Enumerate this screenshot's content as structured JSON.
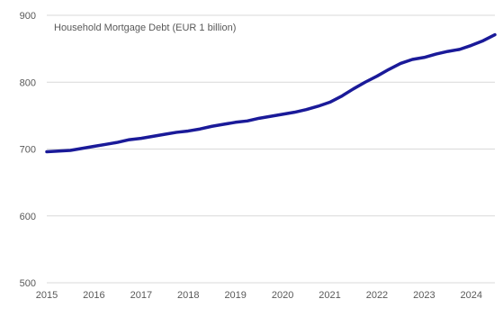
{
  "chart_data": {
    "type": "line",
    "title": "Household Mortgage Debt (EUR 1 billion)",
    "xlabel": "",
    "ylabel": "",
    "xlim": [
      2015.0,
      2024.5
    ],
    "ylim": [
      500,
      900
    ],
    "x_ticks": [
      "2015",
      "2016",
      "2017",
      "2018",
      "2019",
      "2020",
      "2021",
      "2022",
      "2023",
      "2024"
    ],
    "y_ticks": [
      "500",
      "600",
      "700",
      "800",
      "900"
    ],
    "grid": "horizontal",
    "legend": "none",
    "series": [
      {
        "color": "#1a1a99",
        "points": [
          [
            2015.0,
            696
          ],
          [
            2015.25,
            697
          ],
          [
            2015.5,
            698
          ],
          [
            2015.75,
            701
          ],
          [
            2016.0,
            704
          ],
          [
            2016.25,
            707
          ],
          [
            2016.5,
            710
          ],
          [
            2016.75,
            714
          ],
          [
            2017.0,
            716
          ],
          [
            2017.25,
            719
          ],
          [
            2017.5,
            722
          ],
          [
            2017.75,
            725
          ],
          [
            2018.0,
            727
          ],
          [
            2018.25,
            730
          ],
          [
            2018.5,
            734
          ],
          [
            2018.75,
            737
          ],
          [
            2019.0,
            740
          ],
          [
            2019.25,
            742
          ],
          [
            2019.5,
            746
          ],
          [
            2019.75,
            749
          ],
          [
            2020.0,
            752
          ],
          [
            2020.25,
            755
          ],
          [
            2020.5,
            759
          ],
          [
            2020.75,
            764
          ],
          [
            2021.0,
            770
          ],
          [
            2021.25,
            779
          ],
          [
            2021.5,
            790
          ],
          [
            2021.75,
            800
          ],
          [
            2022.0,
            809
          ],
          [
            2022.25,
            819
          ],
          [
            2022.5,
            828
          ],
          [
            2022.75,
            834
          ],
          [
            2023.0,
            837
          ],
          [
            2023.25,
            842
          ],
          [
            2023.5,
            846
          ],
          [
            2023.75,
            849
          ],
          [
            2024.0,
            855
          ],
          [
            2024.25,
            862
          ],
          [
            2024.5,
            871
          ]
        ]
      }
    ]
  }
}
